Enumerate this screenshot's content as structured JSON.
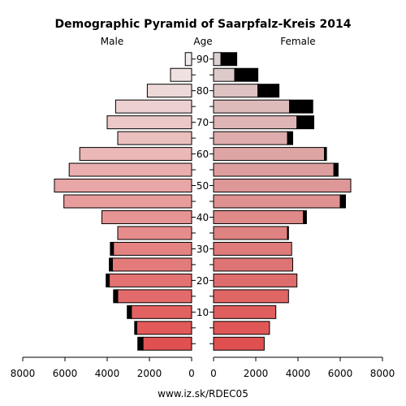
{
  "chart_data": {
    "type": "bar",
    "title": "Demographic Pyramid of Saarpfalz-Kreis 2014",
    "left_label": "Male",
    "center_label": "Age",
    "right_label": "Female",
    "footer": "www.iz.sk/RDEC05",
    "age_groups": [
      "0-4",
      "5-9",
      "10-14",
      "15-19",
      "20-24",
      "25-29",
      "30-34",
      "35-39",
      "40-44",
      "45-49",
      "50-54",
      "55-59",
      "60-64",
      "65-69",
      "70-74",
      "75-79",
      "80-84",
      "85-89",
      "90+"
    ],
    "age_tick_labels": [
      {
        "age": 10,
        "label": "10"
      },
      {
        "age": 20,
        "label": "20"
      },
      {
        "age": 30,
        "label": "30"
      },
      {
        "age": 40,
        "label": "40"
      },
      {
        "age": 50,
        "label": "50"
      },
      {
        "age": 60,
        "label": "60"
      },
      {
        "age": 70,
        "label": "70"
      },
      {
        "age": 80,
        "label": "80"
      },
      {
        "age": 90,
        "label": "90"
      }
    ],
    "x_ticks": [
      {
        "value": 8000,
        "label": "8000"
      },
      {
        "value": 6000,
        "label": "6000"
      },
      {
        "value": 4000,
        "label": "4000"
      },
      {
        "value": 2000,
        "label": "2000"
      },
      {
        "value": 0,
        "label": "0"
      }
    ],
    "xlim": [
      0,
      8000
    ],
    "series": [
      {
        "name": "Male",
        "total": [
          2550,
          2700,
          3050,
          3700,
          4050,
          3900,
          3850,
          3500,
          4250,
          6050,
          6500,
          5800,
          5300,
          3500,
          4000,
          3600,
          2100,
          1000,
          300
        ],
        "black_portion": [
          250,
          100,
          200,
          200,
          150,
          150,
          150,
          0,
          0,
          0,
          0,
          0,
          0,
          0,
          0,
          0,
          0,
          0,
          0
        ]
      },
      {
        "name": "Female",
        "total": [
          2400,
          2650,
          2950,
          3550,
          3950,
          3750,
          3700,
          3550,
          4400,
          6250,
          6500,
          5900,
          5350,
          3750,
          4750,
          4700,
          3100,
          2100,
          1100
        ],
        "black_portion": [
          0,
          0,
          0,
          0,
          0,
          0,
          0,
          50,
          150,
          250,
          0,
          200,
          100,
          250,
          800,
          1100,
          1000,
          1100,
          750
        ]
      }
    ],
    "colors": {
      "male_young": "#e05050",
      "male_old": "#f0eaea",
      "female_young": "#e05050",
      "female_old": "#ddd0d0",
      "black": "#000000"
    }
  }
}
